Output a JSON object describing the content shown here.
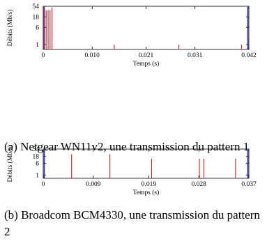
{
  "chart_data": [
    {
      "type": "bar",
      "caption": "(a) Netgear WN11v2, une transmission du pattern 1",
      "xlabel": "Temps (s)",
      "ylabel": "Débits (Mb/s)",
      "xticks": [
        0,
        0.01,
        0.021,
        0.031,
        0.042
      ],
      "xtick_labels": [
        "0",
        "0.010",
        "0.021",
        "0.031",
        "0.042"
      ],
      "yticks": [
        1,
        6,
        18,
        54
      ],
      "ytick_labels": [
        "1",
        "6",
        "18",
        "54"
      ],
      "xlim": [
        0,
        0.042
      ],
      "y_scale": "log",
      "ylim": [
        0.6,
        54
      ],
      "red_series": [
        {
          "x": 0.0001,
          "y": 54
        },
        {
          "x": 0.0006,
          "y": 36
        },
        {
          "x": 0.001,
          "y": 36
        },
        {
          "x": 0.0014,
          "y": 36
        },
        {
          "x": 0.0018,
          "y": 48
        },
        {
          "x": 0.0145,
          "y": 1
        },
        {
          "x": 0.0277,
          "y": 1
        },
        {
          "x": 0.0405,
          "y": 1
        }
      ],
      "blue_markers": [
        0.0,
        0.042
      ]
    },
    {
      "type": "bar",
      "caption": "(b) Broadcom BCM4330, une transmission du pattern 2",
      "xlabel": "Temps (s)",
      "ylabel": "Débits (Mb/s)",
      "xticks": [
        0,
        0.009,
        0.019,
        0.028,
        0.037
      ],
      "xtick_labels": [
        "0",
        "0.009",
        "0.019",
        "0.028",
        "0.037"
      ],
      "yticks": [
        1,
        6,
        18,
        54
      ],
      "ytick_labels": [
        "1",
        "6",
        "18",
        "54"
      ],
      "xlim": [
        0,
        0.037
      ],
      "y_scale": "log",
      "ylim": [
        0.6,
        54
      ],
      "red_series": [
        {
          "x": 0.0051,
          "y": 24
        },
        {
          "x": 0.012,
          "y": 24
        },
        {
          "x": 0.0195,
          "y": 12
        },
        {
          "x": 0.0281,
          "y": 12
        },
        {
          "x": 0.0289,
          "y": 12
        },
        {
          "x": 0.0346,
          "y": 12
        }
      ],
      "blue_markers": [
        0.0,
        0.037
      ]
    }
  ],
  "colors": {
    "red": "#cc2222",
    "blue": "#2a2acc",
    "axis": "#000000"
  }
}
